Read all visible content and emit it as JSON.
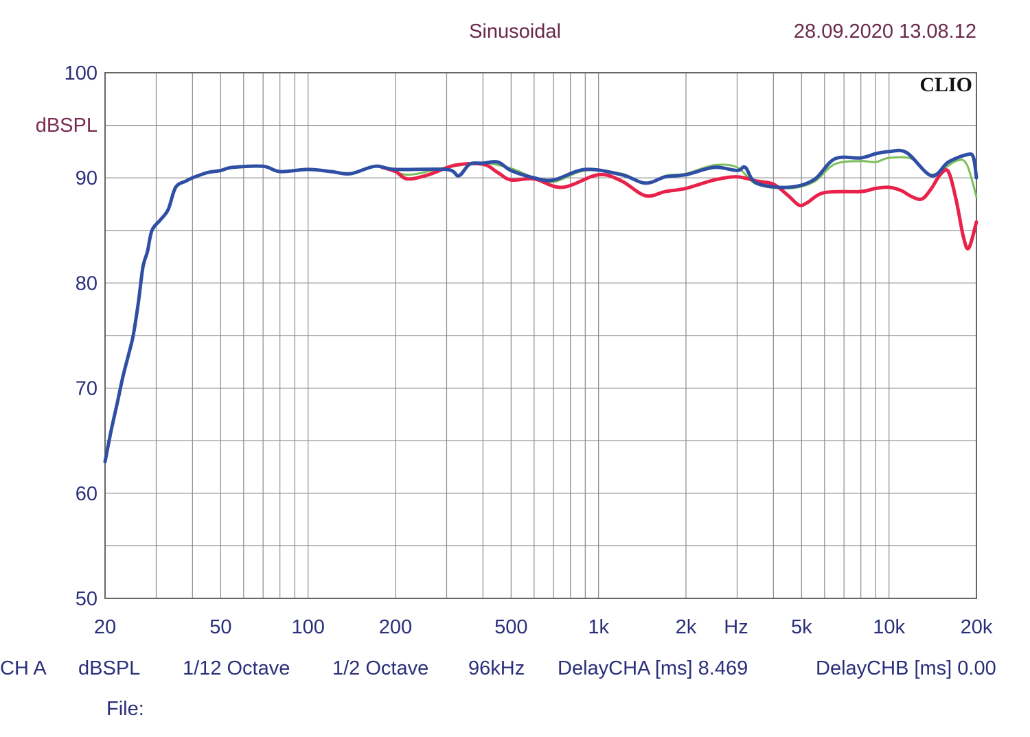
{
  "header": {
    "mode": "Sinusoidal",
    "datetime": "28.09.2020 13.08.12",
    "brand": "CLIO"
  },
  "footer": {
    "line1": [
      "CH A",
      "dBSPL",
      "1/12 Octave",
      "1/2 Octave",
      "96kHz",
      "DelayCHA [ms] 8.469",
      "DelayCHB [ms] 0.00"
    ],
    "file_label": "File:"
  },
  "chart_data": {
    "type": "line",
    "xscale": "log",
    "xlim": [
      20,
      20000
    ],
    "ylim": [
      50,
      100
    ],
    "ylabel": "dBSPL",
    "xlabel": "Hz",
    "grid": true,
    "x_tick_labels": [
      {
        "value": 20,
        "label": "20"
      },
      {
        "value": 50,
        "label": "50"
      },
      {
        "value": 100,
        "label": "100"
      },
      {
        "value": 200,
        "label": "200"
      },
      {
        "value": 500,
        "label": "500"
      },
      {
        "value": 1000,
        "label": "1k"
      },
      {
        "value": 2000,
        "label": "2k"
      },
      {
        "value": 5000,
        "label": "5k"
      },
      {
        "value": 10000,
        "label": "10k"
      },
      {
        "value": 20000,
        "label": "20k"
      }
    ],
    "y_tick_labels": [
      {
        "value": 100,
        "label": "100"
      },
      {
        "value": 90,
        "label": "90"
      },
      {
        "value": 80,
        "label": "80"
      },
      {
        "value": 70,
        "label": "70"
      },
      {
        "value": 60,
        "label": "60"
      },
      {
        "value": 50,
        "label": "50"
      }
    ],
    "series": [
      {
        "color": "#7cbf5a",
        "width": 3,
        "points": [
          [
            180,
            91.1
          ],
          [
            220,
            90.3
          ],
          [
            300,
            91.0
          ],
          [
            400,
            91.4
          ],
          [
            500,
            90.9
          ],
          [
            600,
            90.0
          ],
          [
            700,
            89.6
          ],
          [
            900,
            90.7
          ],
          [
            1200,
            90.4
          ],
          [
            1450,
            89.5
          ],
          [
            1700,
            90.2
          ],
          [
            2000,
            90.4
          ],
          [
            2500,
            91.2
          ],
          [
            3000,
            91.0
          ],
          [
            3500,
            89.4
          ],
          [
            4500,
            89.0
          ],
          [
            5500,
            89.6
          ],
          [
            6500,
            91.3
          ],
          [
            8000,
            91.6
          ],
          [
            9000,
            91.5
          ],
          [
            10000,
            91.9
          ],
          [
            12000,
            91.8
          ],
          [
            14000,
            90.3
          ],
          [
            17000,
            91.6
          ],
          [
            18500,
            91.3
          ],
          [
            20000,
            88.2
          ]
        ]
      },
      {
        "color": "#e8224a",
        "width": 5,
        "points": [
          [
            180,
            91.0
          ],
          [
            200,
            90.6
          ],
          [
            220,
            89.9
          ],
          [
            260,
            90.3
          ],
          [
            320,
            91.2
          ],
          [
            400,
            91.3
          ],
          [
            450,
            90.5
          ],
          [
            500,
            89.8
          ],
          [
            600,
            89.9
          ],
          [
            750,
            89.1
          ],
          [
            1000,
            90.3
          ],
          [
            1200,
            89.7
          ],
          [
            1450,
            88.3
          ],
          [
            1700,
            88.7
          ],
          [
            2000,
            89.0
          ],
          [
            2500,
            89.8
          ],
          [
            3000,
            90.1
          ],
          [
            3500,
            89.7
          ],
          [
            4000,
            89.4
          ],
          [
            4500,
            88.3
          ],
          [
            4900,
            87.4
          ],
          [
            5200,
            87.6
          ],
          [
            6000,
            88.6
          ],
          [
            8000,
            88.7
          ],
          [
            9000,
            89.0
          ],
          [
            10000,
            89.1
          ],
          [
            11000,
            88.8
          ],
          [
            12000,
            88.2
          ],
          [
            13000,
            88.0
          ],
          [
            14000,
            89.0
          ],
          [
            15000,
            90.3
          ],
          [
            16000,
            90.6
          ],
          [
            17000,
            88.0
          ],
          [
            18000,
            84.5
          ],
          [
            18800,
            83.3
          ],
          [
            20000,
            85.8
          ]
        ]
      },
      {
        "color": "#2f4fa5",
        "width": 5,
        "points": [
          [
            20,
            63
          ],
          [
            21,
            66
          ],
          [
            22,
            68.5
          ],
          [
            23,
            71
          ],
          [
            24,
            73
          ],
          [
            25,
            75
          ],
          [
            26,
            78
          ],
          [
            27,
            81.5
          ],
          [
            28,
            83
          ],
          [
            29,
            85
          ],
          [
            31,
            86
          ],
          [
            33,
            87
          ],
          [
            35,
            89.1
          ],
          [
            38,
            89.7
          ],
          [
            40,
            90.0
          ],
          [
            45,
            90.5
          ],
          [
            50,
            90.7
          ],
          [
            55,
            91.0
          ],
          [
            70,
            91.1
          ],
          [
            80,
            90.6
          ],
          [
            100,
            90.8
          ],
          [
            120,
            90.6
          ],
          [
            140,
            90.4
          ],
          [
            170,
            91.1
          ],
          [
            200,
            90.8
          ],
          [
            300,
            90.8
          ],
          [
            330,
            90.2
          ],
          [
            360,
            91.3
          ],
          [
            400,
            91.4
          ],
          [
            450,
            91.5
          ],
          [
            500,
            90.7
          ],
          [
            600,
            90.0
          ],
          [
            700,
            89.8
          ],
          [
            900,
            90.8
          ],
          [
            1200,
            90.3
          ],
          [
            1450,
            89.5
          ],
          [
            1700,
            90.1
          ],
          [
            2000,
            90.3
          ],
          [
            2500,
            91.0
          ],
          [
            3000,
            90.7
          ],
          [
            3200,
            91.0
          ],
          [
            3500,
            89.5
          ],
          [
            4500,
            89.1
          ],
          [
            5500,
            89.8
          ],
          [
            6500,
            91.8
          ],
          [
            8000,
            91.9
          ],
          [
            9000,
            92.3
          ],
          [
            10000,
            92.5
          ],
          [
            11500,
            92.4
          ],
          [
            14000,
            90.2
          ],
          [
            16000,
            91.5
          ],
          [
            18500,
            92.2
          ],
          [
            19500,
            92.0
          ],
          [
            20000,
            90.0
          ]
        ]
      }
    ]
  }
}
